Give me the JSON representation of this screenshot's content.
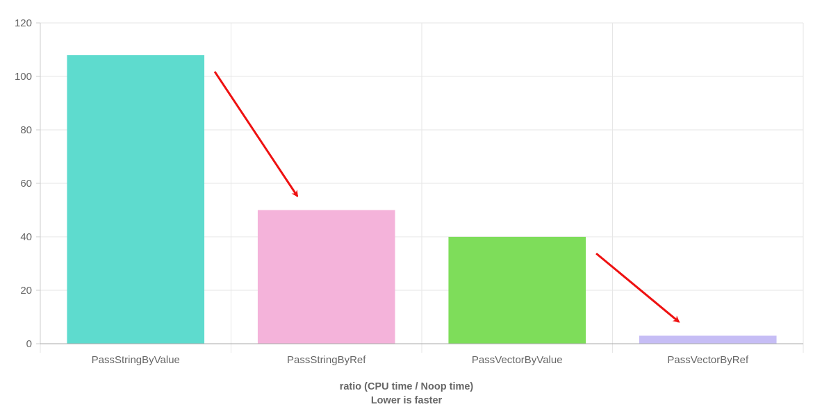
{
  "chart_data": {
    "type": "bar",
    "categories": [
      "PassStringByValue",
      "PassStringByRef",
      "PassVectorByValue",
      "PassVectorByRef"
    ],
    "values": [
      108,
      50,
      40,
      3
    ],
    "colors": [
      "#5edbce",
      "#f4b3da",
      "#7edd5a",
      "#c6bdf5"
    ],
    "ylim": [
      0,
      120
    ],
    "yticks": [
      0,
      20,
      40,
      60,
      80,
      100,
      120
    ],
    "xlabel": [
      "ratio (CPU time / Noop time)",
      "Lower is faster"
    ],
    "grid": true,
    "annotations": [
      {
        "type": "arrow",
        "from": "PassStringByValue",
        "to": "PassStringByRef",
        "color": "#ee1111"
      },
      {
        "type": "arrow",
        "from": "PassVectorByValue",
        "to": "PassVectorByRef",
        "color": "#ee1111"
      }
    ]
  }
}
